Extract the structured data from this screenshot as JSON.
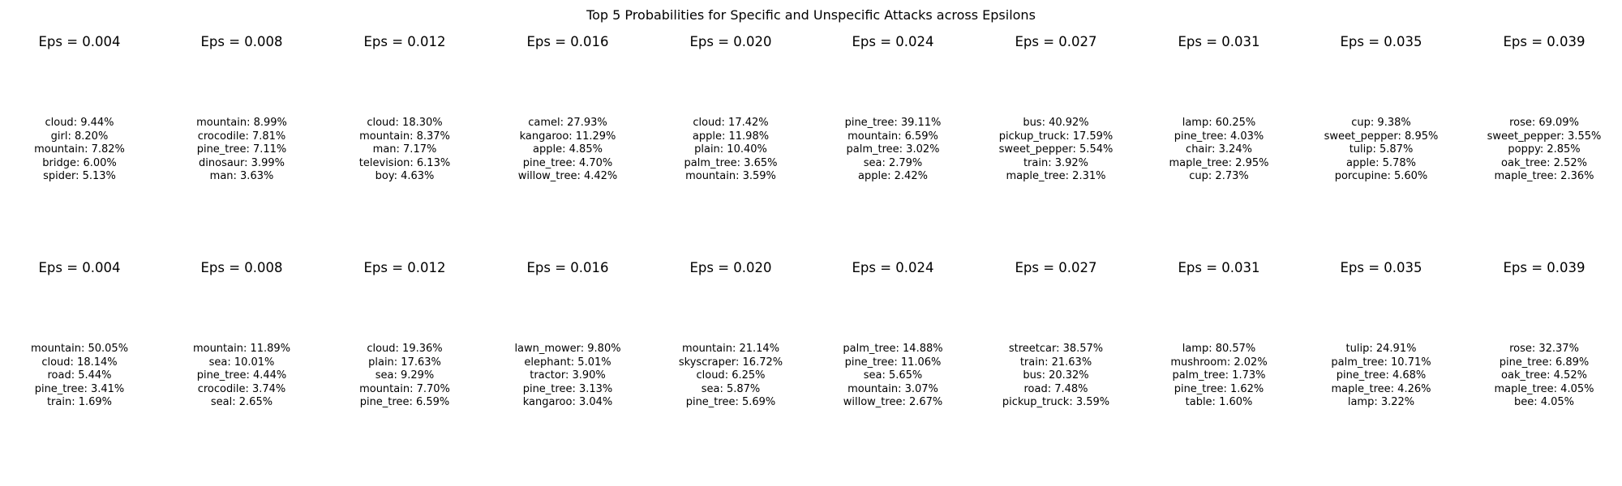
{
  "chart_data": {
    "type": "table",
    "title": "Top 5 Probabilities for Specific and Unspecific Attacks across Epsilons",
    "grid": false,
    "rows": [
      {
        "panels": [
          {
            "title": "Eps = 0.004",
            "eps": 0.004,
            "entries": [
              {
                "label": "cloud",
                "value": 9.44,
                "text": "cloud: 9.44%"
              },
              {
                "label": "girl",
                "value": 8.2,
                "text": "girl: 8.20%"
              },
              {
                "label": "mountain",
                "value": 7.82,
                "text": "mountain: 7.82%"
              },
              {
                "label": "bridge",
                "value": 6.0,
                "text": "bridge: 6.00%"
              },
              {
                "label": "spider",
                "value": 5.13,
                "text": "spider: 5.13%"
              }
            ]
          },
          {
            "title": "Eps = 0.008",
            "eps": 0.008,
            "entries": [
              {
                "label": "mountain",
                "value": 8.99,
                "text": "mountain: 8.99%"
              },
              {
                "label": "crocodile",
                "value": 7.81,
                "text": "crocodile: 7.81%"
              },
              {
                "label": "pine_tree",
                "value": 7.11,
                "text": "pine_tree: 7.11%"
              },
              {
                "label": "dinosaur",
                "value": 3.99,
                "text": "dinosaur: 3.99%"
              },
              {
                "label": "man",
                "value": 3.63,
                "text": "man: 3.63%"
              }
            ]
          },
          {
            "title": "Eps = 0.012",
            "eps": 0.012,
            "entries": [
              {
                "label": "cloud",
                "value": 18.3,
                "text": "cloud: 18.30%"
              },
              {
                "label": "mountain",
                "value": 8.37,
                "text": "mountain: 8.37%"
              },
              {
                "label": "man",
                "value": 7.17,
                "text": "man: 7.17%"
              },
              {
                "label": "television",
                "value": 6.13,
                "text": "television: 6.13%"
              },
              {
                "label": "boy",
                "value": 4.63,
                "text": "boy: 4.63%"
              }
            ]
          },
          {
            "title": "Eps = 0.016",
            "eps": 0.016,
            "entries": [
              {
                "label": "camel",
                "value": 27.93,
                "text": "camel: 27.93%"
              },
              {
                "label": "kangaroo",
                "value": 11.29,
                "text": "kangaroo: 11.29%"
              },
              {
                "label": "apple",
                "value": 4.85,
                "text": "apple: 4.85%"
              },
              {
                "label": "pine_tree",
                "value": 4.7,
                "text": "pine_tree: 4.70%"
              },
              {
                "label": "willow_tree",
                "value": 4.42,
                "text": "willow_tree: 4.42%"
              }
            ]
          },
          {
            "title": "Eps = 0.020",
            "eps": 0.02,
            "entries": [
              {
                "label": "cloud",
                "value": 17.42,
                "text": "cloud: 17.42%"
              },
              {
                "label": "apple",
                "value": 11.98,
                "text": "apple: 11.98%"
              },
              {
                "label": "plain",
                "value": 10.4,
                "text": "plain: 10.40%"
              },
              {
                "label": "palm_tree",
                "value": 3.65,
                "text": "palm_tree: 3.65%"
              },
              {
                "label": "mountain",
                "value": 3.59,
                "text": "mountain: 3.59%"
              }
            ]
          },
          {
            "title": "Eps = 0.024",
            "eps": 0.024,
            "entries": [
              {
                "label": "pine_tree",
                "value": 39.11,
                "text": "pine_tree: 39.11%"
              },
              {
                "label": "mountain",
                "value": 6.59,
                "text": "mountain: 6.59%"
              },
              {
                "label": "palm_tree",
                "value": 3.02,
                "text": "palm_tree: 3.02%"
              },
              {
                "label": "sea",
                "value": 2.79,
                "text": "sea: 2.79%"
              },
              {
                "label": "apple",
                "value": 2.42,
                "text": "apple: 2.42%"
              }
            ]
          },
          {
            "title": "Eps = 0.027",
            "eps": 0.027,
            "entries": [
              {
                "label": "bus",
                "value": 40.92,
                "text": "bus: 40.92%"
              },
              {
                "label": "pickup_truck",
                "value": 17.59,
                "text": "pickup_truck: 17.59%"
              },
              {
                "label": "sweet_pepper",
                "value": 5.54,
                "text": "sweet_pepper: 5.54%"
              },
              {
                "label": "train",
                "value": 3.92,
                "text": "train: 3.92%"
              },
              {
                "label": "maple_tree",
                "value": 2.31,
                "text": "maple_tree: 2.31%"
              }
            ]
          },
          {
            "title": "Eps = 0.031",
            "eps": 0.031,
            "entries": [
              {
                "label": "lamp",
                "value": 60.25,
                "text": "lamp: 60.25%"
              },
              {
                "label": "pine_tree",
                "value": 4.03,
                "text": "pine_tree: 4.03%"
              },
              {
                "label": "chair",
                "value": 3.24,
                "text": "chair: 3.24%"
              },
              {
                "label": "maple_tree",
                "value": 2.95,
                "text": "maple_tree: 2.95%"
              },
              {
                "label": "cup",
                "value": 2.73,
                "text": "cup: 2.73%"
              }
            ]
          },
          {
            "title": "Eps = 0.035",
            "eps": 0.035,
            "entries": [
              {
                "label": "cup",
                "value": 9.38,
                "text": "cup: 9.38%"
              },
              {
                "label": "sweet_pepper",
                "value": 8.95,
                "text": "sweet_pepper: 8.95%"
              },
              {
                "label": "tulip",
                "value": 5.87,
                "text": "tulip: 5.87%"
              },
              {
                "label": "apple",
                "value": 5.78,
                "text": "apple: 5.78%"
              },
              {
                "label": "porcupine",
                "value": 5.6,
                "text": "porcupine: 5.60%"
              }
            ]
          },
          {
            "title": "Eps = 0.039",
            "eps": 0.039,
            "entries": [
              {
                "label": "rose",
                "value": 69.09,
                "text": "rose: 69.09%"
              },
              {
                "label": "sweet_pepper",
                "value": 3.55,
                "text": "sweet_pepper: 3.55%"
              },
              {
                "label": "poppy",
                "value": 2.85,
                "text": "poppy: 2.85%"
              },
              {
                "label": "oak_tree",
                "value": 2.52,
                "text": "oak_tree: 2.52%"
              },
              {
                "label": "maple_tree",
                "value": 2.36,
                "text": "maple_tree: 2.36%"
              }
            ]
          }
        ]
      },
      {
        "panels": [
          {
            "title": "Eps = 0.004",
            "eps": 0.004,
            "entries": [
              {
                "label": "mountain",
                "value": 50.05,
                "text": "mountain: 50.05%"
              },
              {
                "label": "cloud",
                "value": 18.14,
                "text": "cloud: 18.14%"
              },
              {
                "label": "road",
                "value": 5.44,
                "text": "road: 5.44%"
              },
              {
                "label": "pine_tree",
                "value": 3.41,
                "text": "pine_tree: 3.41%"
              },
              {
                "label": "train",
                "value": 1.69,
                "text": "train: 1.69%"
              }
            ]
          },
          {
            "title": "Eps = 0.008",
            "eps": 0.008,
            "entries": [
              {
                "label": "mountain",
                "value": 11.89,
                "text": "mountain: 11.89%"
              },
              {
                "label": "sea",
                "value": 10.01,
                "text": "sea: 10.01%"
              },
              {
                "label": "pine_tree",
                "value": 4.44,
                "text": "pine_tree: 4.44%"
              },
              {
                "label": "crocodile",
                "value": 3.74,
                "text": "crocodile: 3.74%"
              },
              {
                "label": "seal",
                "value": 2.65,
                "text": "seal: 2.65%"
              }
            ]
          },
          {
            "title": "Eps = 0.012",
            "eps": 0.012,
            "entries": [
              {
                "label": "cloud",
                "value": 19.36,
                "text": "cloud: 19.36%"
              },
              {
                "label": "plain",
                "value": 17.63,
                "text": "plain: 17.63%"
              },
              {
                "label": "sea",
                "value": 9.29,
                "text": "sea: 9.29%"
              },
              {
                "label": "mountain",
                "value": 7.7,
                "text": "mountain: 7.70%"
              },
              {
                "label": "pine_tree",
                "value": 6.59,
                "text": "pine_tree: 6.59%"
              }
            ]
          },
          {
            "title": "Eps = 0.016",
            "eps": 0.016,
            "entries": [
              {
                "label": "lawn_mower",
                "value": 9.8,
                "text": "lawn_mower: 9.80%"
              },
              {
                "label": "elephant",
                "value": 5.01,
                "text": "elephant: 5.01%"
              },
              {
                "label": "tractor",
                "value": 3.9,
                "text": "tractor: 3.90%"
              },
              {
                "label": "pine_tree",
                "value": 3.13,
                "text": "pine_tree: 3.13%"
              },
              {
                "label": "kangaroo",
                "value": 3.04,
                "text": "kangaroo: 3.04%"
              }
            ]
          },
          {
            "title": "Eps = 0.020",
            "eps": 0.02,
            "entries": [
              {
                "label": "mountain",
                "value": 21.14,
                "text": "mountain: 21.14%"
              },
              {
                "label": "skyscraper",
                "value": 16.72,
                "text": "skyscraper: 16.72%"
              },
              {
                "label": "cloud",
                "value": 6.25,
                "text": "cloud: 6.25%"
              },
              {
                "label": "sea",
                "value": 5.87,
                "text": "sea: 5.87%"
              },
              {
                "label": "pine_tree",
                "value": 5.69,
                "text": "pine_tree: 5.69%"
              }
            ]
          },
          {
            "title": "Eps = 0.024",
            "eps": 0.024,
            "entries": [
              {
                "label": "palm_tree",
                "value": 14.88,
                "text": "palm_tree: 14.88%"
              },
              {
                "label": "pine_tree",
                "value": 11.06,
                "text": "pine_tree: 11.06%"
              },
              {
                "label": "sea",
                "value": 5.65,
                "text": "sea: 5.65%"
              },
              {
                "label": "mountain",
                "value": 3.07,
                "text": "mountain: 3.07%"
              },
              {
                "label": "willow_tree",
                "value": 2.67,
                "text": "willow_tree: 2.67%"
              }
            ]
          },
          {
            "title": "Eps = 0.027",
            "eps": 0.027,
            "entries": [
              {
                "label": "streetcar",
                "value": 38.57,
                "text": "streetcar: 38.57%"
              },
              {
                "label": "train",
                "value": 21.63,
                "text": "train: 21.63%"
              },
              {
                "label": "bus",
                "value": 20.32,
                "text": "bus: 20.32%"
              },
              {
                "label": "road",
                "value": 7.48,
                "text": "road: 7.48%"
              },
              {
                "label": "pickup_truck",
                "value": 3.59,
                "text": "pickup_truck: 3.59%"
              }
            ]
          },
          {
            "title": "Eps = 0.031",
            "eps": 0.031,
            "entries": [
              {
                "label": "lamp",
                "value": 80.57,
                "text": "lamp: 80.57%"
              },
              {
                "label": "mushroom",
                "value": 2.02,
                "text": "mushroom: 2.02%"
              },
              {
                "label": "palm_tree",
                "value": 1.73,
                "text": "palm_tree: 1.73%"
              },
              {
                "label": "pine_tree",
                "value": 1.62,
                "text": "pine_tree: 1.62%"
              },
              {
                "label": "table",
                "value": 1.6,
                "text": "table: 1.60%"
              }
            ]
          },
          {
            "title": "Eps = 0.035",
            "eps": 0.035,
            "entries": [
              {
                "label": "tulip",
                "value": 24.91,
                "text": "tulip: 24.91%"
              },
              {
                "label": "palm_tree",
                "value": 10.71,
                "text": "palm_tree: 10.71%"
              },
              {
                "label": "pine_tree",
                "value": 4.68,
                "text": "pine_tree: 4.68%"
              },
              {
                "label": "maple_tree",
                "value": 4.26,
                "text": "maple_tree: 4.26%"
              },
              {
                "label": "lamp",
                "value": 3.22,
                "text": "lamp: 3.22%"
              }
            ]
          },
          {
            "title": "Eps = 0.039",
            "eps": 0.039,
            "entries": [
              {
                "label": "rose",
                "value": 32.37,
                "text": "rose: 32.37%"
              },
              {
                "label": "pine_tree",
                "value": 6.89,
                "text": "pine_tree: 6.89%"
              },
              {
                "label": "oak_tree",
                "value": 4.52,
                "text": "oak_tree: 4.52%"
              },
              {
                "label": "maple_tree",
                "value": 4.05,
                "text": "maple_tree: 4.05%"
              },
              {
                "label": "bee",
                "value": 4.05,
                "text": "bee: 4.05%"
              }
            ]
          }
        ]
      }
    ]
  }
}
